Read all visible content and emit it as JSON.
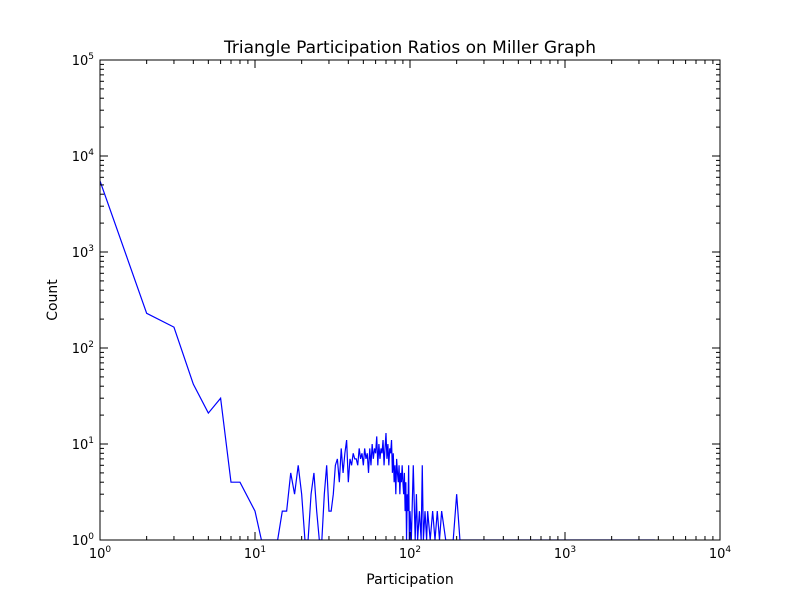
{
  "chart_data": {
    "type": "line",
    "title": "Triangle Participation Ratios on Miller Graph",
    "xlabel": "Participation",
    "ylabel": "Count",
    "xscale": "log",
    "yscale": "log",
    "xlim": [
      1,
      10000
    ],
    "ylim": [
      1,
      100000
    ],
    "grid": false,
    "line_color": "#0000ff",
    "x_ticks": [
      {
        "base": "10",
        "exp": "0",
        "value": 1
      },
      {
        "base": "10",
        "exp": "1",
        "value": 10
      },
      {
        "base": "10",
        "exp": "2",
        "value": 100
      },
      {
        "base": "10",
        "exp": "3",
        "value": 1000
      },
      {
        "base": "10",
        "exp": "4",
        "value": 10000
      }
    ],
    "y_ticks": [
      {
        "base": "10",
        "exp": "0",
        "value": 1
      },
      {
        "base": "10",
        "exp": "1",
        "value": 10
      },
      {
        "base": "10",
        "exp": "2",
        "value": 100
      },
      {
        "base": "10",
        "exp": "3",
        "value": 1000
      },
      {
        "base": "10",
        "exp": "4",
        "value": 10000
      },
      {
        "base": "10",
        "exp": "5",
        "value": 100000
      }
    ],
    "series": [
      {
        "x": [
          1,
          2,
          3,
          4,
          5,
          6,
          7,
          8,
          10,
          11,
          14,
          15,
          16,
          17,
          18,
          19,
          20,
          21,
          22,
          23,
          24,
          25,
          26,
          27,
          28,
          29,
          30,
          31,
          32,
          33,
          34,
          35,
          36,
          37,
          38,
          39,
          40,
          41,
          42,
          43,
          44,
          45,
          46,
          47,
          48,
          49,
          50,
          51,
          52,
          53,
          54,
          55,
          56,
          57,
          58,
          59,
          60,
          61,
          62,
          63,
          64,
          65,
          66,
          67,
          68,
          69,
          70,
          71,
          72,
          73,
          74,
          75,
          76,
          77,
          78,
          79,
          80,
          81,
          82,
          83,
          84,
          85,
          86,
          87,
          88,
          89,
          90,
          91,
          92,
          93,
          94,
          95,
          96,
          97,
          98,
          99,
          100,
          102,
          105,
          108,
          110,
          112,
          115,
          118,
          120,
          122,
          125,
          128,
          130,
          135,
          140,
          145,
          150,
          155,
          160,
          170,
          180,
          190,
          200,
          210,
          220,
          3800
        ],
        "y": [
          5500,
          230,
          165,
          42,
          21,
          30,
          4,
          4,
          2,
          1,
          1,
          2,
          2,
          5,
          3,
          6,
          3,
          1,
          1,
          3,
          5,
          2,
          1,
          1,
          3,
          6,
          2,
          2,
          3,
          6,
          7,
          4,
          9,
          5,
          8,
          11,
          4,
          7,
          6,
          8,
          7,
          7,
          6,
          9,
          7,
          8,
          6,
          9,
          7,
          8,
          5,
          9,
          6,
          10,
          7,
          9,
          8,
          12,
          6,
          10,
          7,
          9,
          8,
          11,
          6,
          9,
          13,
          7,
          10,
          6,
          9,
          8,
          11,
          5,
          8,
          4,
          6,
          3,
          7,
          5,
          4,
          6,
          3,
          5,
          4,
          6,
          4,
          3,
          5,
          2,
          4,
          1,
          3,
          2,
          6,
          1,
          2,
          1,
          6,
          1,
          3,
          1,
          2,
          1,
          6,
          1,
          2,
          1,
          2,
          1,
          2,
          1,
          2,
          1,
          2,
          1,
          1,
          1,
          3,
          1,
          1,
          1
        ]
      }
    ]
  }
}
